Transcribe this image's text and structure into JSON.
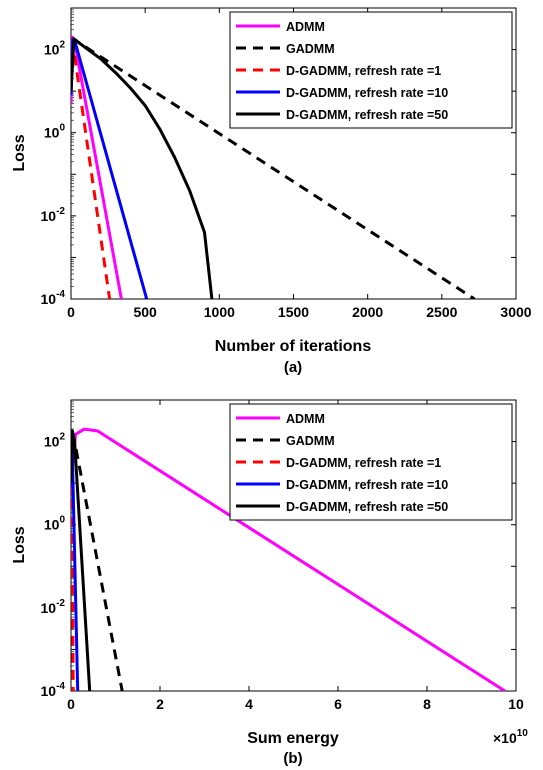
{
  "chart_data": [
    {
      "type": "line",
      "caption": "(a)",
      "xlabel": "Number of iterations",
      "ylabel": "Loss",
      "y_scale": "log",
      "xlim": [
        0,
        3000
      ],
      "ylim": [
        0.0001,
        1000
      ],
      "x_ticks": [
        "0",
        "500",
        "1000",
        "1500",
        "2000",
        "2500",
        "3000"
      ],
      "legend_position": "top-right",
      "series": [
        {
          "name": "ADMM",
          "color": "#ff00ff",
          "dash": "solid",
          "x": [
            0,
            10,
            25,
            340
          ],
          "y": [
            5,
            200,
            150,
            0.0001
          ]
        },
        {
          "name": "GADMM",
          "color": "#000000",
          "dash": "dashed",
          "x": [
            0,
            20,
            50,
            2720
          ],
          "y": [
            60,
            180,
            150,
            0.0001
          ]
        },
        {
          "name": "D-GADMM, refresh rate =1",
          "color": "#ff0000",
          "dash": "dashed",
          "x": [
            0,
            15,
            260
          ],
          "y": [
            12,
            120,
            0.0001
          ]
        },
        {
          "name": "D-GADMM, refresh rate =10",
          "color": "#0000ff",
          "dash": "solid",
          "x": [
            0,
            12,
            30,
            510
          ],
          "y": [
            8,
            180,
            140,
            0.0001
          ]
        },
        {
          "name": "D-GADMM, refresh rate =50",
          "color": "#000000",
          "dash": "solid",
          "x": [
            0,
            20,
            50,
            100,
            200,
            300,
            400,
            500,
            600,
            700,
            800,
            900,
            950
          ],
          "y": [
            10,
            180,
            150,
            110,
            60,
            28,
            12,
            4.5,
            1.2,
            0.25,
            0.04,
            0.004,
            0.0001
          ]
        }
      ]
    },
    {
      "type": "line",
      "caption": "(b)",
      "xlabel": "Sum energy",
      "ylabel": "Loss",
      "x_multiplier": "×10",
      "x_multiplier_exp": "10",
      "y_scale": "log",
      "xlim": [
        0,
        10
      ],
      "ylim": [
        0.0001,
        1000
      ],
      "x_ticks": [
        "0",
        "2",
        "4",
        "6",
        "8",
        "10"
      ],
      "legend_position": "top-right",
      "series": [
        {
          "name": "ADMM",
          "color": "#ff00ff",
          "dash": "solid",
          "x": [
            0,
            0.1,
            0.3,
            0.6,
            9.75
          ],
          "y": [
            10,
            150,
            200,
            180,
            0.0001
          ]
        },
        {
          "name": "GADMM",
          "color": "#000000",
          "dash": "dashed",
          "x": [
            0,
            0.05,
            1.15
          ],
          "y": [
            8,
            150,
            0.0001
          ]
        },
        {
          "name": "D-GADMM, refresh rate =1",
          "color": "#ff0000",
          "dash": "dashed",
          "x": [
            0,
            0.02,
            0.05
          ],
          "y": [
            5,
            120,
            0.0001
          ]
        },
        {
          "name": "D-GADMM, refresh rate =10",
          "color": "#0000ff",
          "dash": "solid",
          "x": [
            0,
            0.02,
            0.15
          ],
          "y": [
            8,
            150,
            0.0001
          ]
        },
        {
          "name": "D-GADMM, refresh rate =50",
          "color": "#000000",
          "dash": "solid",
          "x": [
            0,
            0.03,
            0.08,
            0.42
          ],
          "y": [
            10,
            180,
            100,
            0.0001
          ]
        }
      ]
    }
  ]
}
